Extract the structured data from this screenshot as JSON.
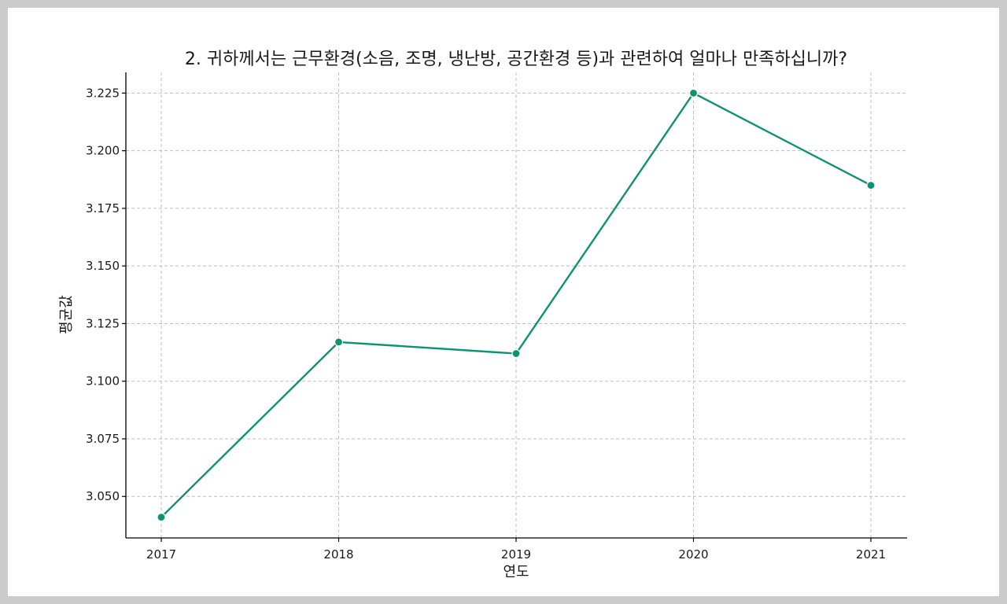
{
  "chart_data": {
    "type": "line",
    "title": "2. 귀하께서는 근무환경(소음, 조명, 냉난방, 공간환경 등)과 관련하여 얼마나 만족하십니까?",
    "xlabel": "연도",
    "ylabel": "평균값",
    "x": [
      "2017",
      "2018",
      "2019",
      "2020",
      "2021"
    ],
    "series": [
      {
        "values": [
          3.041,
          3.117,
          3.112,
          3.225,
          3.185
        ]
      }
    ],
    "ylim": [
      3.032,
      3.234
    ],
    "yticks": [
      3.05,
      3.075,
      3.1,
      3.125,
      3.15,
      3.175,
      3.2,
      3.225
    ],
    "ytick_labels": [
      "3.050",
      "3.075",
      "3.100",
      "3.125",
      "3.150",
      "3.175",
      "3.200",
      "3.225"
    ],
    "grid": true,
    "line_color": "#0f9272",
    "marker": "circle"
  }
}
